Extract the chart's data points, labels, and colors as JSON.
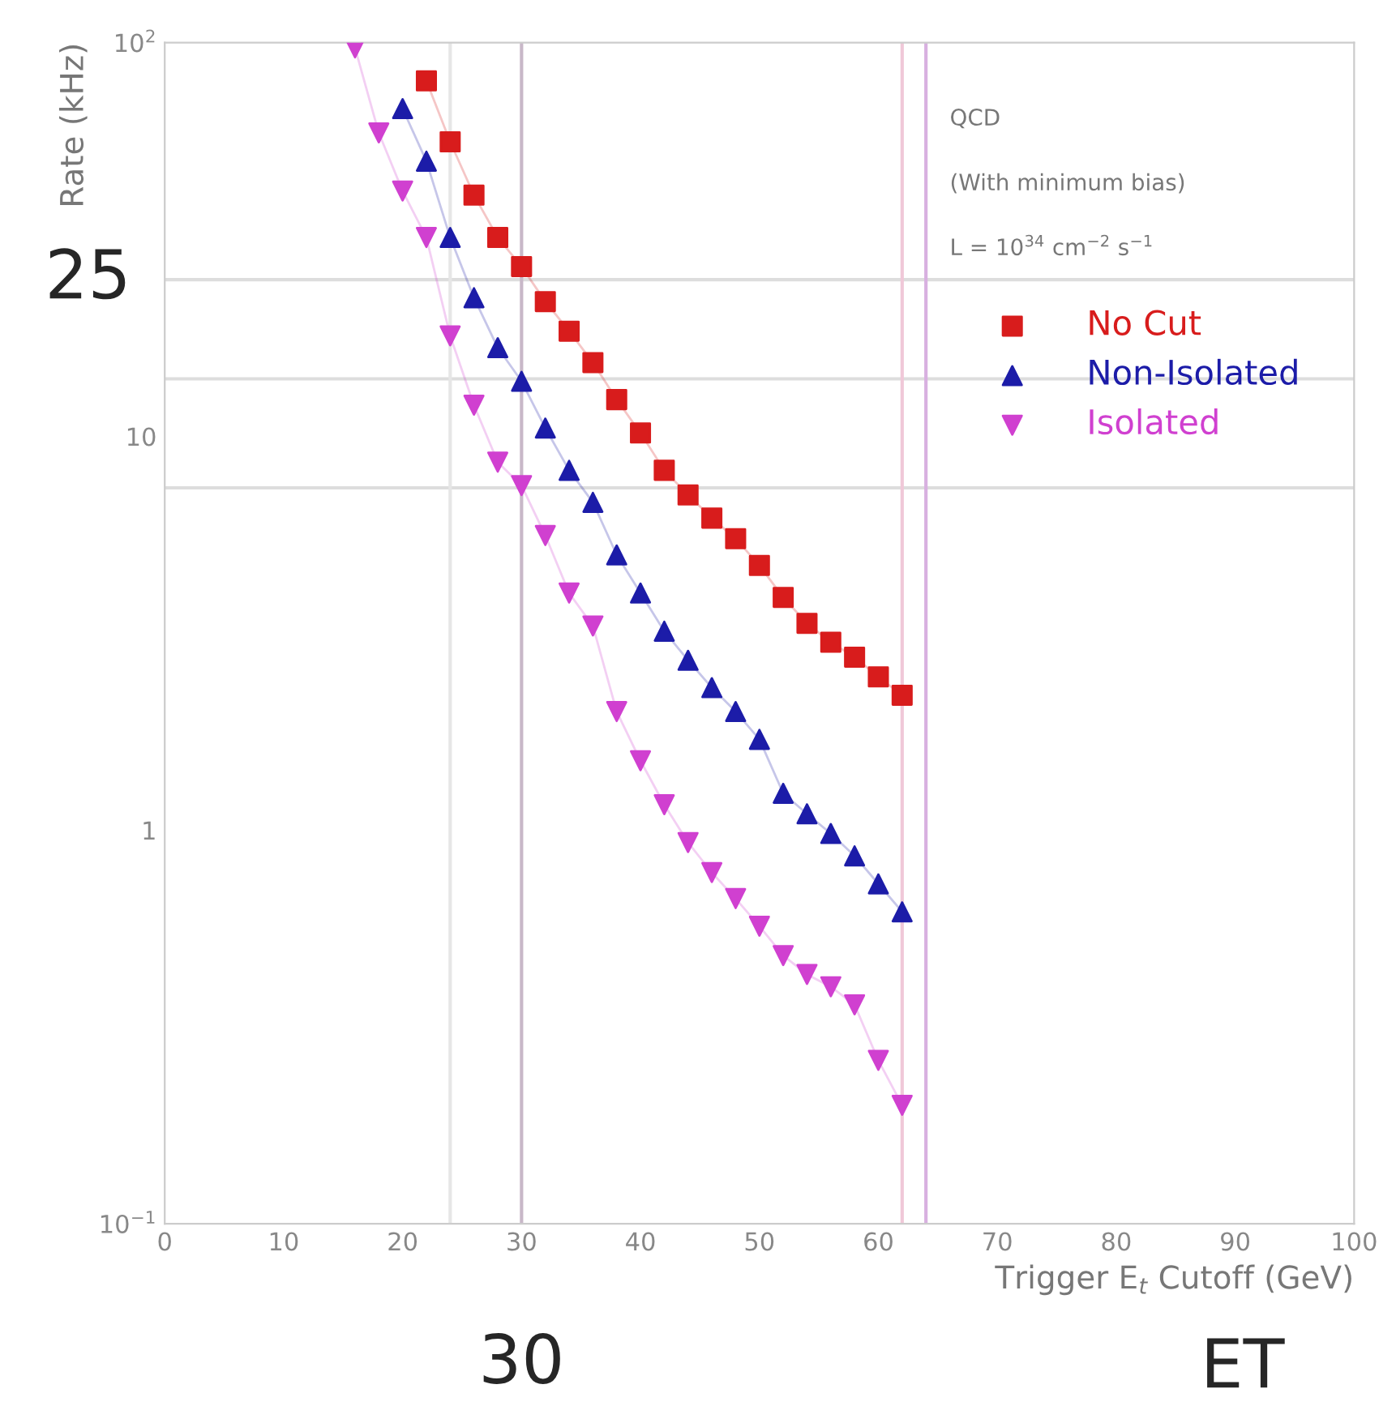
{
  "chart_data": {
    "type": "line",
    "xlabel": "Trigger E$_{t}$ Cutoff (GeV)",
    "ylabel": "Rate (kHz)",
    "annotations": [
      "QCD",
      "(With minimum bias)",
      "L = 10$^{34}$ cm$^{−2}$ s$^{−1}$",
      "ET"
    ],
    "log": "y",
    "line_style": "solid",
    "legend": "top right",
    "grid": false,
    "xlim": [
      0,
      100
    ],
    "xticks": [
      0,
      10,
      20,
      30,
      40,
      50,
      60,
      70,
      80,
      90,
      100
    ],
    "ylim": [
      0.1,
      100
    ],
    "yticks": [
      {
        "value": 0.1,
        "label": "10$^{−1}$"
      },
      1,
      10,
      {
        "value": 100,
        "label": "10$^{2}$"
      }
    ],
    "series": [
      {
        "name": "No Cut",
        "color": "#d81c1c",
        "marker": "square",
        "x": [
          22,
          24,
          26,
          28,
          30,
          32,
          34,
          36,
          38,
          40,
          42,
          44,
          46,
          48,
          50,
          52,
          54,
          56,
          58,
          60,
          62
        ],
        "values": [
          80,
          56,
          41,
          32,
          27,
          22,
          18.5,
          15.4,
          12.4,
          10.2,
          8.2,
          7.1,
          6.2,
          5.5,
          4.7,
          3.9,
          3.35,
          3.0,
          2.75,
          2.45,
          2.2
        ]
      },
      {
        "name": "Non-Isolated",
        "color": "#1c1ca8",
        "marker": "triangle",
        "x": [
          20,
          22,
          24,
          26,
          28,
          30,
          32,
          34,
          36,
          38,
          40,
          42,
          44,
          46,
          48,
          50,
          52,
          54,
          56,
          58,
          60,
          62
        ],
        "values": [
          68,
          50,
          32,
          22.5,
          16.8,
          13.8,
          10.5,
          8.2,
          6.8,
          5.0,
          4.0,
          3.2,
          2.7,
          2.3,
          2.0,
          1.7,
          1.24,
          1.1,
          0.98,
          0.86,
          0.73,
          0.62
        ]
      },
      {
        "name": "Isolated",
        "color": "#d040d0",
        "marker": "triangle_down",
        "x": [
          16,
          18,
          20,
          22,
          24,
          26,
          28,
          30,
          32,
          34,
          36,
          38,
          40,
          42,
          44,
          46,
          48,
          50,
          52,
          54,
          56,
          58,
          60,
          62
        ],
        "values": [
          97,
          59,
          42,
          32,
          18,
          12,
          8.6,
          7.5,
          5.6,
          4.0,
          3.3,
          2.0,
          1.5,
          1.16,
          0.93,
          0.78,
          0.67,
          0.57,
          0.48,
          0.43,
          0.4,
          0.36,
          0.26,
          0.2
        ]
      }
    ],
    "ref_lines": [
      {
        "axis": "y",
        "value": 25,
        "label": "25",
        "color": "#dddddd"
      },
      {
        "axis": "y",
        "value": 14,
        "color": "#dddddd"
      },
      {
        "axis": "y",
        "value": 7.4,
        "color": "#dddddd"
      },
      {
        "axis": "x",
        "value": 24,
        "color": "#e6e6e6"
      },
      {
        "axis": "x",
        "value": 30,
        "label": "30",
        "color": "#c8b8c8"
      },
      {
        "axis": "x",
        "value": 62,
        "color": "#f0c8d8"
      },
      {
        "axis": "x",
        "value": 64,
        "color": "#d8b0e0"
      }
    ]
  }
}
